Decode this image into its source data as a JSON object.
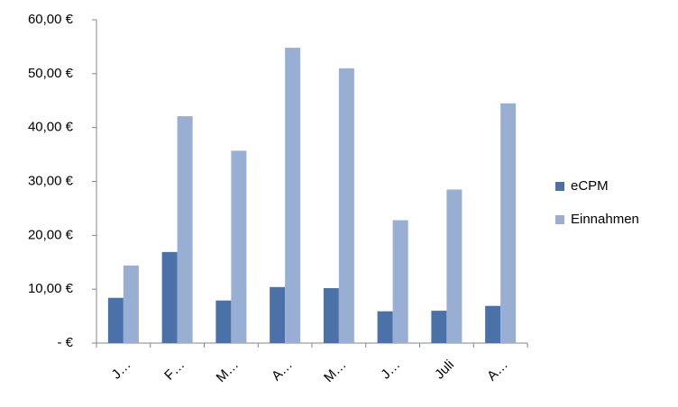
{
  "chart_data": {
    "type": "bar",
    "categories": [
      "J…",
      "F…",
      "M…",
      "A…",
      "M…",
      "J…",
      "Juli",
      "A…"
    ],
    "series": [
      {
        "name": "eCPM",
        "color": "#4a72a8",
        "values": [
          8.4,
          16.9,
          7.9,
          10.4,
          10.2,
          5.9,
          6.0,
          6.9
        ]
      },
      {
        "name": "Einnahmen",
        "color": "#98aed3",
        "values": [
          14.4,
          42.1,
          35.7,
          54.8,
          51.0,
          22.8,
          28.5,
          44.5
        ]
      }
    ],
    "ylim": [
      0,
      60
    ],
    "yticks": [
      {
        "value": 0,
        "label": "-   €"
      },
      {
        "value": 10,
        "label": "10,00 €"
      },
      {
        "value": 20,
        "label": "20,00 €"
      },
      {
        "value": 30,
        "label": "30,00 €"
      },
      {
        "value": 40,
        "label": "40,00 €"
      },
      {
        "value": 50,
        "label": "50,00 €"
      },
      {
        "value": 60,
        "label": "60,00 €"
      }
    ],
    "grid": false,
    "legend": "right"
  }
}
